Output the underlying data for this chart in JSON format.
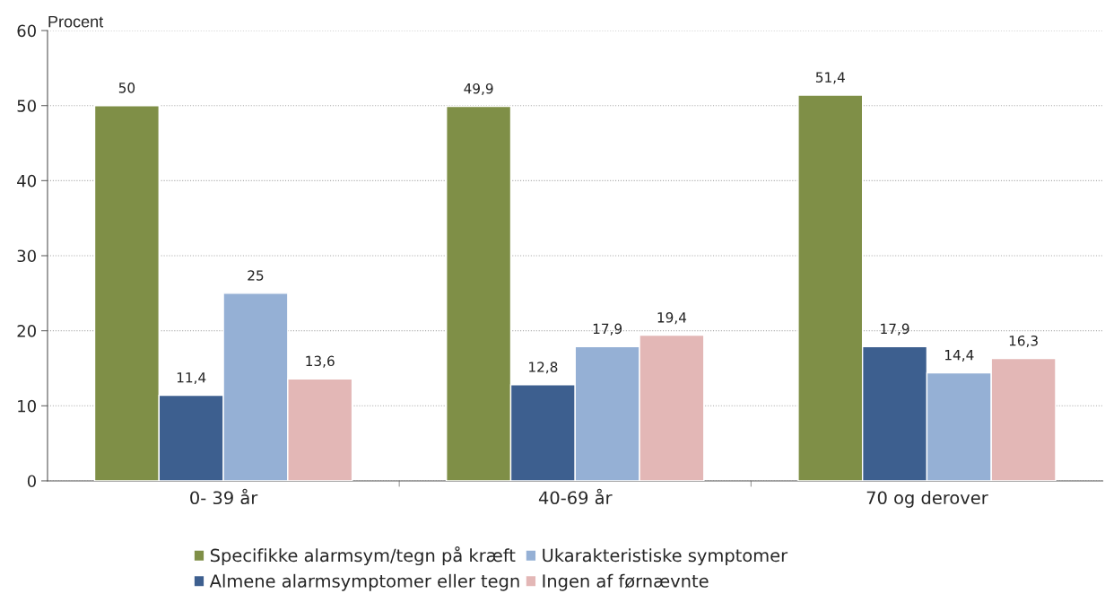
{
  "chart_data": {
    "type": "bar",
    "ylabel": "Procent",
    "categories": [
      "0- 39 år",
      "40-69 år",
      "70 og derover"
    ],
    "series": [
      {
        "name": "Specifikke alarmsym/tegn på kræft",
        "color": "#7f8f47",
        "values": [
          50,
          49.9,
          51.4
        ],
        "value_labels": [
          "50",
          "49,9",
          "51,4"
        ]
      },
      {
        "name": "Almene alarmsymptomer eller tegn",
        "color": "#3d5f8f",
        "values": [
          11.4,
          12.8,
          17.9
        ],
        "value_labels": [
          "11,4",
          "12,8",
          "17,9"
        ]
      },
      {
        "name": "Ukarakteristiske symptomer",
        "color": "#95b0d5",
        "values": [
          25,
          17.9,
          14.4
        ],
        "value_labels": [
          "25",
          "17,9",
          "14,4"
        ]
      },
      {
        "name": "Ingen af førnævnte",
        "color": "#e3b7b6",
        "values": [
          13.6,
          19.4,
          16.3
        ],
        "value_labels": [
          "13,6",
          "19,4",
          "16,3"
        ]
      }
    ],
    "ylim": [
      0,
      60
    ],
    "yticks": [
      0,
      10,
      20,
      30,
      40,
      50,
      60
    ],
    "grid": "y",
    "legend": "bottom"
  }
}
